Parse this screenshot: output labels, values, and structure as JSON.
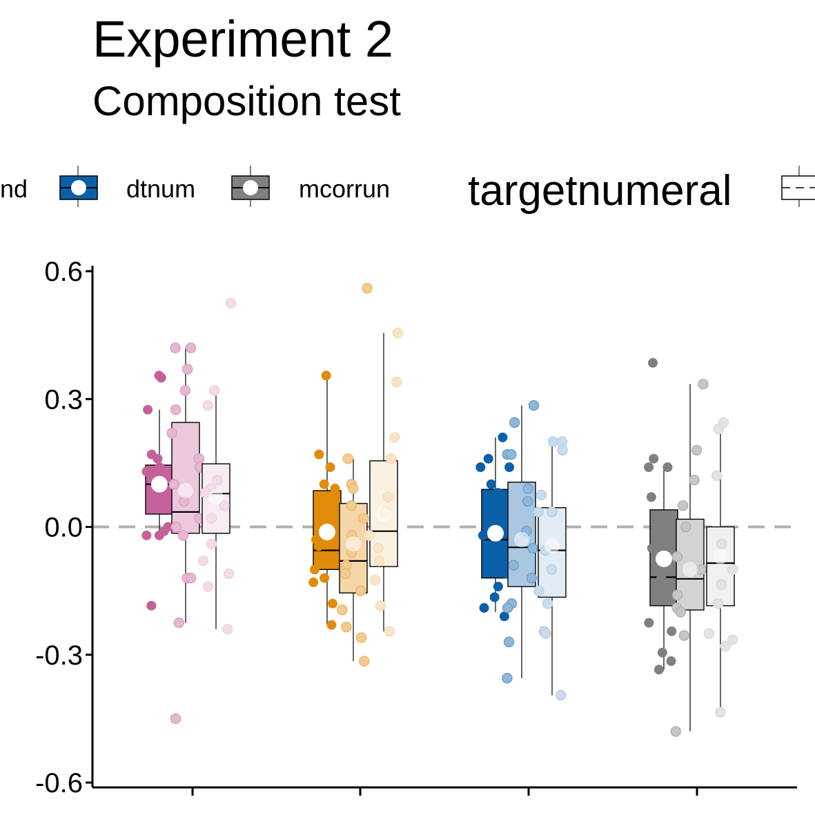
{
  "title": "Experiment 2",
  "subtitle": "Composition test",
  "legend": {
    "items": [
      {
        "label": "nd",
        "color": "#c5619a"
      },
      {
        "label": "dtnum",
        "color": "#0a60a8"
      },
      {
        "label": "mcorrun",
        "color": "#808080"
      }
    ],
    "title2": "targetnumeral"
  },
  "chart_data": {
    "type": "boxplot",
    "title": "Experiment 2",
    "subtitle": "Composition test",
    "ylim": [
      -0.6,
      0.6
    ],
    "y_ticks": [
      "0.6",
      "0.3",
      "0.0",
      "-0.3",
      "-0.6"
    ],
    "y_tick_values": [
      0.6,
      0.3,
      0.0,
      -0.3,
      -0.6
    ],
    "reference_line": 0.0,
    "groups": [
      {
        "color": "#c5619a",
        "boxes": [
          {
            "q1": 0.03,
            "median": 0.1,
            "q3": 0.145,
            "whisker_low": -0.02,
            "whisker_high": 0.275,
            "mean": 0.1,
            "points": [
              0.355,
              0.35,
              0.275,
              0.17,
              0.16,
              0.14,
              0.13,
              0.12,
              0.11,
              0.09,
              0.07,
              0.0,
              -0.01,
              -0.02,
              -0.02,
              -0.185
            ]
          },
          {
            "q1": -0.015,
            "median": 0.035,
            "q3": 0.245,
            "whisker_low": -0.225,
            "whisker_high": 0.42,
            "mean": 0.085,
            "points": [
              0.42,
              0.42,
              0.37,
              0.32,
              0.275,
              0.22,
              0.16,
              0.14,
              0.1,
              0.06,
              0.02,
              0.0,
              -0.02,
              -0.12,
              -0.12,
              -0.225,
              -0.45
            ]
          },
          {
            "q1": -0.015,
            "median": 0.078,
            "q3": 0.148,
            "whisker_low": -0.24,
            "whisker_high": 0.32,
            "mean": 0.07,
            "points": [
              0.525,
              0.32,
              0.285,
              0.11,
              0.09,
              0.08,
              0.05,
              0.02,
              -0.04,
              -0.08,
              -0.11,
              -0.14,
              -0.24
            ]
          }
        ]
      },
      {
        "color": "#e08b0a",
        "boxes": [
          {
            "q1": -0.1,
            "median": -0.055,
            "q3": 0.085,
            "whisker_low": -0.23,
            "whisker_high": 0.355,
            "mean": -0.012,
            "points": [
              0.355,
              0.17,
              0.14,
              0.1,
              0.09,
              0.01,
              -0.03,
              -0.045,
              -0.07,
              -0.1,
              -0.13,
              -0.12,
              -0.18,
              -0.23
            ]
          },
          {
            "q1": -0.155,
            "median": -0.08,
            "q3": 0.055,
            "whisker_low": -0.315,
            "whisker_high": 0.16,
            "mean": -0.04,
            "points": [
              0.56,
              0.16,
              0.1,
              0.09,
              0.05,
              0.02,
              -0.02,
              -0.06,
              -0.09,
              -0.11,
              -0.15,
              -0.195,
              -0.235,
              -0.26,
              -0.315
            ]
          },
          {
            "q1": -0.093,
            "median": -0.01,
            "q3": 0.155,
            "whisker_low": -0.245,
            "whisker_high": 0.455,
            "mean": 0.03,
            "points": [
              0.455,
              0.34,
              0.21,
              0.16,
              0.07,
              0.035,
              -0.02,
              -0.05,
              -0.08,
              -0.125,
              -0.185,
              -0.245
            ]
          }
        ]
      },
      {
        "color": "#0a60a8",
        "boxes": [
          {
            "q1": -0.12,
            "median": -0.03,
            "q3": 0.088,
            "whisker_low": -0.2,
            "whisker_high": 0.21,
            "mean": -0.015,
            "points": [
              0.21,
              0.16,
              0.14,
              0.14,
              0.1,
              0.08,
              0.04,
              -0.02,
              -0.04,
              -0.08,
              -0.11,
              -0.14,
              -0.165,
              -0.19,
              -0.21
            ]
          },
          {
            "q1": -0.14,
            "median": -0.048,
            "q3": 0.105,
            "whisker_low": -0.355,
            "whisker_high": 0.285,
            "mean": -0.03,
            "points": [
              0.285,
              0.245,
              0.17,
              0.17,
              0.09,
              0.06,
              -0.01,
              -0.05,
              -0.09,
              -0.12,
              -0.18,
              -0.19,
              -0.27,
              -0.355
            ]
          },
          {
            "q1": -0.165,
            "median": -0.055,
            "q3": 0.045,
            "whisker_low": -0.395,
            "whisker_high": 0.2,
            "mean": -0.045,
            "points": [
              0.2,
              0.2,
              0.18,
              0.075,
              0.035,
              0.035,
              -0.055,
              -0.1,
              -0.15,
              -0.18,
              -0.245,
              -0.25,
              -0.395
            ]
          }
        ]
      },
      {
        "color": "#808080",
        "boxes": [
          {
            "q1": -0.185,
            "median": -0.118,
            "q3": 0.04,
            "whisker_low": -0.335,
            "whisker_high": 0.14,
            "mean": -0.075,
            "points": [
              0.385,
              0.16,
              0.14,
              0.14,
              0.07,
              0.01,
              -0.05,
              -0.08,
              -0.12,
              -0.225,
              -0.245,
              -0.295,
              -0.315,
              -0.335
            ]
          },
          {
            "q1": -0.195,
            "median": -0.122,
            "q3": 0.018,
            "whisker_low": -0.48,
            "whisker_high": 0.335,
            "mean": -0.1,
            "points": [
              0.335,
              0.18,
              0.11,
              0.05,
              0.0,
              -0.07,
              -0.1,
              -0.16,
              -0.19,
              -0.2,
              -0.255,
              -0.48
            ]
          },
          {
            "q1": -0.185,
            "median": -0.085,
            "q3": 0.0,
            "whisker_low": -0.435,
            "whisker_high": 0.245,
            "mean": -0.07,
            "points": [
              0.245,
              0.23,
              0.12,
              -0.04,
              -0.1,
              -0.135,
              -0.18,
              -0.25,
              -0.265,
              -0.28,
              -0.435
            ]
          }
        ]
      }
    ],
    "box_alphas": [
      1.0,
      0.35,
      0.12
    ]
  }
}
